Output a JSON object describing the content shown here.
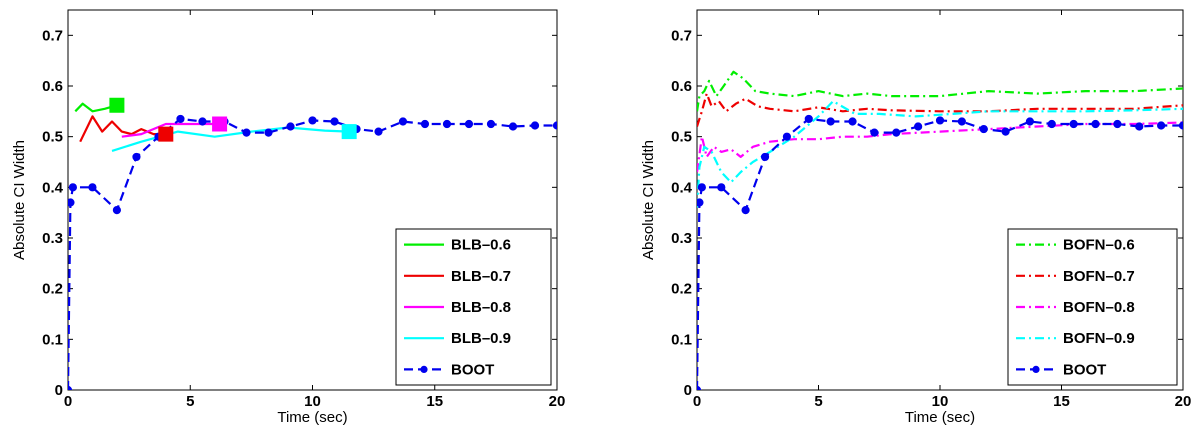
{
  "chart_data": [
    {
      "type": "line",
      "xlabel": "Time (sec)",
      "ylabel": "Absolute CI Width",
      "xlim": [
        0,
        20
      ],
      "ylim": [
        0,
        0.75
      ],
      "xticks": [
        0,
        5,
        10,
        15,
        20
      ],
      "yticks": [
        0,
        0.1,
        0.2,
        0.3,
        0.4,
        0.5,
        0.6,
        0.7
      ],
      "legend_position": "bottom-right",
      "grid": false,
      "series": [
        {
          "name": "BLB–0.6",
          "color": "#00ee00",
          "dash": "solid",
          "end_marker": "square",
          "x": [
            0.3,
            0.6,
            1.0,
            1.5,
            2.0
          ],
          "y": [
            0.55,
            0.565,
            0.55,
            0.555,
            0.562
          ]
        },
        {
          "name": "BLB–0.7",
          "color": "#ee0000",
          "dash": "solid",
          "end_marker": "square",
          "x": [
            0.5,
            1.0,
            1.4,
            1.8,
            2.2,
            2.6,
            3.0,
            3.5,
            4.0
          ],
          "y": [
            0.49,
            0.54,
            0.51,
            0.53,
            0.51,
            0.505,
            0.515,
            0.505,
            0.505
          ]
        },
        {
          "name": "BLB–0.8",
          "color": "#ff00ff",
          "dash": "solid",
          "end_marker": "square",
          "x": [
            2.2,
            3.0,
            4.0,
            5.0,
            6.2
          ],
          "y": [
            0.5,
            0.505,
            0.525,
            0.525,
            0.525
          ]
        },
        {
          "name": "BLB–0.9",
          "color": "#00ffff",
          "dash": "solid",
          "end_marker": "square",
          "x": [
            1.8,
            3.0,
            4.5,
            6.0,
            7.5,
            9.0,
            10.5,
            11.5
          ],
          "y": [
            0.472,
            0.49,
            0.51,
            0.5,
            0.51,
            0.518,
            0.512,
            0.51
          ]
        },
        {
          "name": "BOOT",
          "color": "#0000ee",
          "dash": "dashed",
          "marker": "circle",
          "x": [
            0,
            0.1,
            0.2,
            1.0,
            2.0,
            2.8,
            3.7,
            4.6,
            5.5,
            6.4,
            7.3,
            8.2,
            9.1,
            10.0,
            10.9,
            11.8,
            12.7,
            13.7,
            14.6,
            15.5,
            16.4,
            17.3,
            18.2,
            19.1,
            20.0
          ],
          "y": [
            0,
            0.37,
            0.4,
            0.4,
            0.355,
            0.46,
            0.5,
            0.535,
            0.53,
            0.53,
            0.508,
            0.508,
            0.52,
            0.532,
            0.53,
            0.515,
            0.51,
            0.53,
            0.525,
            0.525,
            0.525,
            0.525,
            0.52,
            0.522,
            0.522
          ]
        }
      ]
    },
    {
      "type": "line",
      "xlabel": "Time (sec)",
      "ylabel": "Absolute CI Width",
      "xlim": [
        0,
        20
      ],
      "ylim": [
        0,
        0.75
      ],
      "xticks": [
        0,
        5,
        10,
        15,
        20
      ],
      "yticks": [
        0,
        0.1,
        0.2,
        0.3,
        0.4,
        0.5,
        0.6,
        0.7
      ],
      "legend_position": "bottom-right",
      "grid": false,
      "series": [
        {
          "name": "BOFN–0.6",
          "color": "#00ee00",
          "dash": "dashdot",
          "x": [
            0,
            0.1,
            0.3,
            0.5,
            0.8,
            1.1,
            1.5,
            1.9,
            2.4,
            3.0,
            4.0,
            5.0,
            6.0,
            7.0,
            8.0,
            10.0,
            12.0,
            14.0,
            16.0,
            18.0,
            20.0
          ],
          "y": [
            0.55,
            0.58,
            0.59,
            0.61,
            0.58,
            0.6,
            0.628,
            0.615,
            0.59,
            0.585,
            0.58,
            0.59,
            0.58,
            0.585,
            0.58,
            0.58,
            0.59,
            0.585,
            0.59,
            0.59,
            0.595
          ]
        },
        {
          "name": "BOFN–0.7",
          "color": "#ee0000",
          "dash": "dashdot",
          "x": [
            0,
            0.2,
            0.4,
            0.6,
            0.9,
            1.2,
            1.6,
            2.0,
            2.5,
            3.0,
            4.0,
            5.0,
            6.0,
            7.0,
            8.0,
            10.0,
            12.0,
            14.0,
            16.0,
            18.0,
            20.0
          ],
          "y": [
            0.52,
            0.55,
            0.585,
            0.56,
            0.57,
            0.55,
            0.565,
            0.575,
            0.56,
            0.555,
            0.55,
            0.558,
            0.55,
            0.555,
            0.552,
            0.55,
            0.55,
            0.555,
            0.555,
            0.555,
            0.562
          ]
        },
        {
          "name": "BOFN–0.8",
          "color": "#ff00ff",
          "dash": "dashdot",
          "x": [
            0,
            0.2,
            0.4,
            0.7,
            1.0,
            1.4,
            1.8,
            2.3,
            3.0,
            4.0,
            5.0,
            6.0,
            7.0,
            8.0,
            10.0,
            12.0,
            14.0,
            16.0,
            18.0,
            20.0
          ],
          "y": [
            0.43,
            0.5,
            0.46,
            0.48,
            0.47,
            0.475,
            0.46,
            0.48,
            0.49,
            0.495,
            0.495,
            0.5,
            0.5,
            0.505,
            0.51,
            0.515,
            0.52,
            0.525,
            0.525,
            0.528
          ]
        },
        {
          "name": "BOFN–0.9",
          "color": "#00ffff",
          "dash": "dashdot",
          "x": [
            0,
            0.1,
            0.3,
            0.6,
            1.0,
            1.4,
            1.8,
            2.3,
            3.0,
            4.0,
            5.0,
            5.6,
            6.5,
            7.5,
            9.0,
            10.5,
            12.0,
            14.0,
            16.0,
            18.0,
            20.0
          ],
          "y": [
            0.36,
            0.44,
            0.48,
            0.47,
            0.43,
            0.41,
            0.43,
            0.45,
            0.47,
            0.5,
            0.54,
            0.57,
            0.545,
            0.545,
            0.54,
            0.545,
            0.55,
            0.55,
            0.55,
            0.552,
            0.555
          ]
        },
        {
          "name": "BOOT",
          "color": "#0000ee",
          "dash": "dashed",
          "marker": "circle",
          "x": [
            0,
            0.1,
            0.2,
            1.0,
            2.0,
            2.8,
            3.7,
            4.6,
            5.5,
            6.4,
            7.3,
            8.2,
            9.1,
            10.0,
            10.9,
            11.8,
            12.7,
            13.7,
            14.6,
            15.5,
            16.4,
            17.3,
            18.2,
            19.1,
            20.0
          ],
          "y": [
            0,
            0.37,
            0.4,
            0.4,
            0.355,
            0.46,
            0.5,
            0.535,
            0.53,
            0.53,
            0.508,
            0.508,
            0.52,
            0.532,
            0.53,
            0.515,
            0.51,
            0.53,
            0.525,
            0.525,
            0.525,
            0.525,
            0.52,
            0.522,
            0.522
          ]
        }
      ]
    }
  ]
}
